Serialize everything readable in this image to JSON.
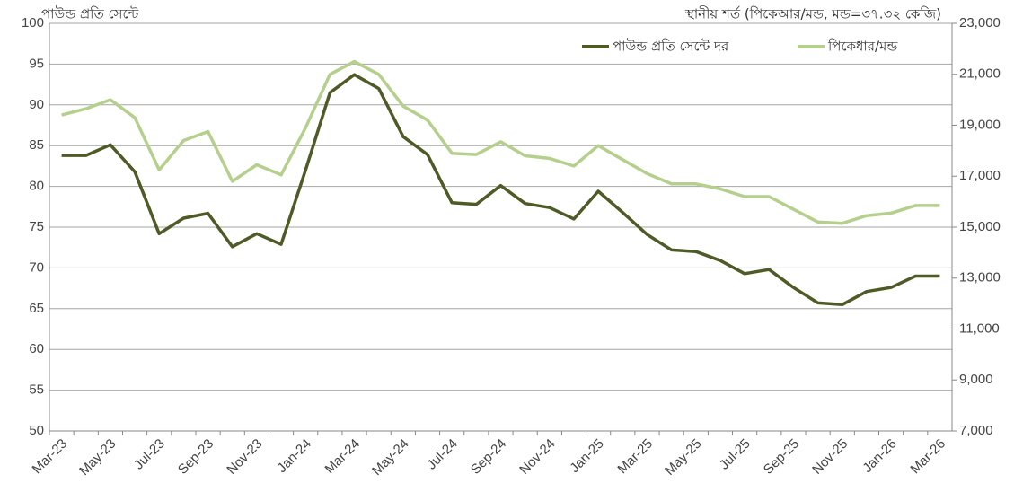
{
  "chart_data": {
    "type": "line",
    "ylabel": "পাউন্ড প্রতি সেন্টে",
    "y2label": "স্থানীয় শর্ত (পিকেআর/মন্ড, মন্ড=৩৭.৩২ কেজি)",
    "categories": [
      "Mar-23",
      null,
      "May-23",
      null,
      "Jul-23",
      null,
      "Sep-23",
      null,
      "Nov-23",
      null,
      "Jan-24",
      null,
      "Mar-24",
      null,
      "May-24",
      null,
      "Jul-24",
      null,
      "Sep-24",
      null,
      "Nov-24",
      null,
      "Jan-25",
      null,
      "Mar-25",
      null,
      "May-25",
      null,
      "Jul-25",
      null,
      "Sep-25",
      null,
      "Nov-25",
      null,
      "Jan-26",
      null,
      "Mar-26"
    ],
    "series": [
      {
        "name": "পাউন্ড প্রতি সেন্টে দর",
        "color": "#4e5b27",
        "values": [
          83.8,
          83.8,
          85.1,
          81.8,
          74.2,
          76.1,
          76.7,
          72.6,
          74.2,
          72.9,
          82.0,
          91.5,
          93.7,
          92.0,
          86.1,
          83.9,
          78.0,
          77.8,
          80.1,
          77.9,
          77.4,
          76.0,
          79.4,
          76.8,
          74.1,
          72.2,
          72.0,
          70.9,
          69.3,
          69.8,
          67.6,
          65.7,
          65.5,
          67.1,
          67.6,
          69.0,
          69.0
        ]
      },
      {
        "name": "পিকেধার/মন্ড",
        "color": "#b5cf8c",
        "axis": "y2",
        "values": [
          19400,
          19650,
          20000,
          19300,
          17250,
          18400,
          18750,
          16800,
          17450,
          17050,
          18900,
          21000,
          21500,
          21000,
          19750,
          19200,
          17900,
          17850,
          18350,
          17800,
          17700,
          17400,
          18200,
          17650,
          17100,
          16700,
          16700,
          16500,
          16200,
          16200,
          15700,
          15200,
          15150,
          15450,
          15550,
          15850,
          15850
        ]
      }
    ],
    "ylim": [
      50,
      100
    ],
    "yticks": [
      50,
      55,
      60,
      65,
      70,
      75,
      80,
      85,
      90,
      95,
      100
    ],
    "y2lim": [
      7000,
      23000
    ],
    "y2ticks": [
      {
        "value": 7000,
        "label": "7,000"
      },
      {
        "value": 9000,
        "label": "9,000"
      },
      {
        "value": 11000,
        "label": "11,000"
      },
      {
        "value": 13000,
        "label": "13,000"
      },
      {
        "value": 15000,
        "label": "15,000"
      },
      {
        "value": 17000,
        "label": "17,000"
      },
      {
        "value": 19000,
        "label": "19,000"
      },
      {
        "value": 21000,
        "label": "21,000"
      },
      {
        "value": 23000,
        "label": "23,000"
      }
    ],
    "grid": true
  }
}
